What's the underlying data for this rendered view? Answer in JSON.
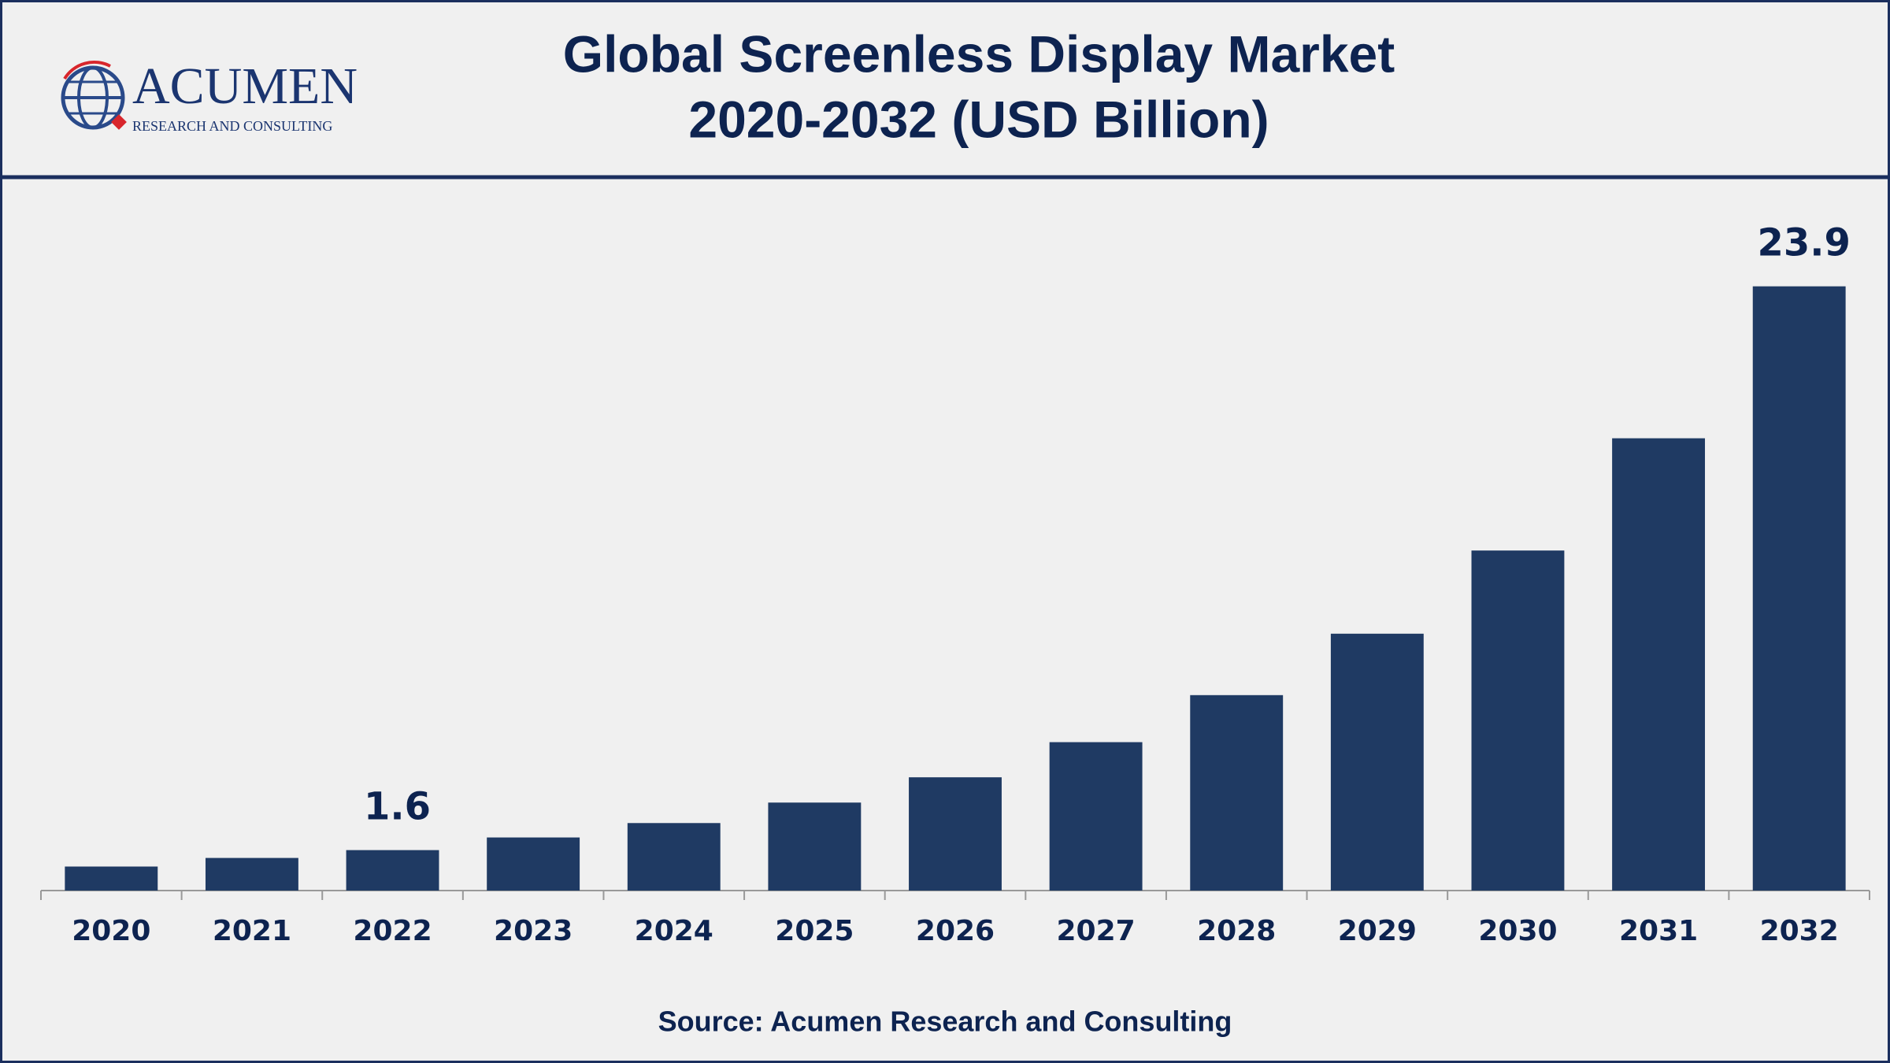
{
  "logo": {
    "name": "ACUMEN",
    "tagline": "RESEARCH AND CONSULTING"
  },
  "chart_data": {
    "type": "bar",
    "title": [
      "Global Screenless Display Market",
      "2020-2032 (USD Billion)"
    ],
    "categories": [
      "2020",
      "2021",
      "2022",
      "2023",
      "2024",
      "2025",
      "2026",
      "2027",
      "2028",
      "2029",
      "2030",
      "2031",
      "2032"
    ],
    "values": [
      0.95,
      1.29,
      1.6,
      2.1,
      2.67,
      3.48,
      4.48,
      5.87,
      7.73,
      10.16,
      13.45,
      17.89,
      23.9
    ],
    "value_labels": [
      null,
      null,
      "1.6",
      null,
      null,
      null,
      null,
      null,
      null,
      null,
      null,
      null,
      "23.9"
    ],
    "color": "#1f3a63",
    "ylim": [
      0,
      28
    ],
    "source": "Source: Acumen Research and Consulting"
  }
}
